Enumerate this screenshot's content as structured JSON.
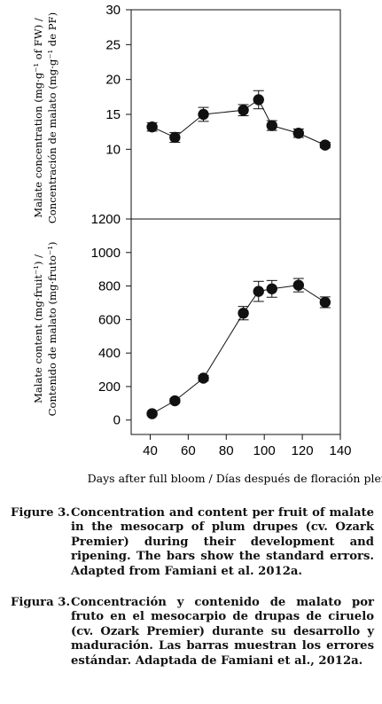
{
  "chart_data": [
    {
      "type": "scatter",
      "panel": "top",
      "ylabel_line1": "Malate concentration (mg·g⁻¹ of FW) /",
      "ylabel_line2": "Concentración de malato (mg·g⁻¹ de PF)",
      "xlabel": "",
      "ylim": [
        0,
        30
      ],
      "yticks": [
        10,
        15,
        20,
        25,
        30
      ],
      "xlim": [
        30,
        140
      ],
      "grid": false,
      "series": [
        {
          "x": [
            41,
            53,
            68,
            89,
            97,
            104,
            118,
            132
          ],
          "y": [
            13.2,
            11.7,
            15.0,
            15.6,
            17.1,
            13.4,
            12.3,
            10.6
          ],
          "err": [
            0.6,
            0.7,
            1.0,
            0.8,
            1.3,
            0.7,
            0.6,
            0.4
          ]
        }
      ]
    },
    {
      "type": "line",
      "panel": "bottom",
      "ylabel_line1": "Malate content (mg·fruit⁻¹) /",
      "ylabel_line2": "Contenido de malato (mg·fruto⁻¹)",
      "xlabel": "Days after full bloom / Días después de floración plena",
      "ylim": [
        0,
        1200
      ],
      "yticks": [
        0,
        200,
        400,
        600,
        800,
        1000,
        1200
      ],
      "xlim": [
        30,
        140
      ],
      "xticks": [
        40,
        60,
        80,
        100,
        120,
        140
      ],
      "grid": false,
      "series": [
        {
          "x": [
            41,
            53,
            68,
            89,
            97,
            104,
            118,
            132
          ],
          "y": [
            38,
            115,
            250,
            638,
            768,
            783,
            805,
            703
          ],
          "err": [
            8,
            12,
            15,
            40,
            60,
            50,
            40,
            32
          ]
        }
      ]
    }
  ],
  "caption": {
    "en_label": "Figure 3.",
    "en_text": "Concentration and content per fruit of malate in the mesocarp of plum drupes (cv. Ozark Premier) during their development and ripening. The bars show the standard errors. Adapted from Famiani et al. 2012a.",
    "es_label": "Figura 3.",
    "es_text": "Concentración y contenido de malato por fruto en el mesocarpio de drupas de ciruelo (cv. Ozark Premier) durante su desarrollo y maduración. Las barras muestran los errores estándar. Adaptada de Famiani et al., 2012a."
  },
  "colors": {
    "marker": "#111111",
    "line": "#111111",
    "axis": "#111111"
  }
}
